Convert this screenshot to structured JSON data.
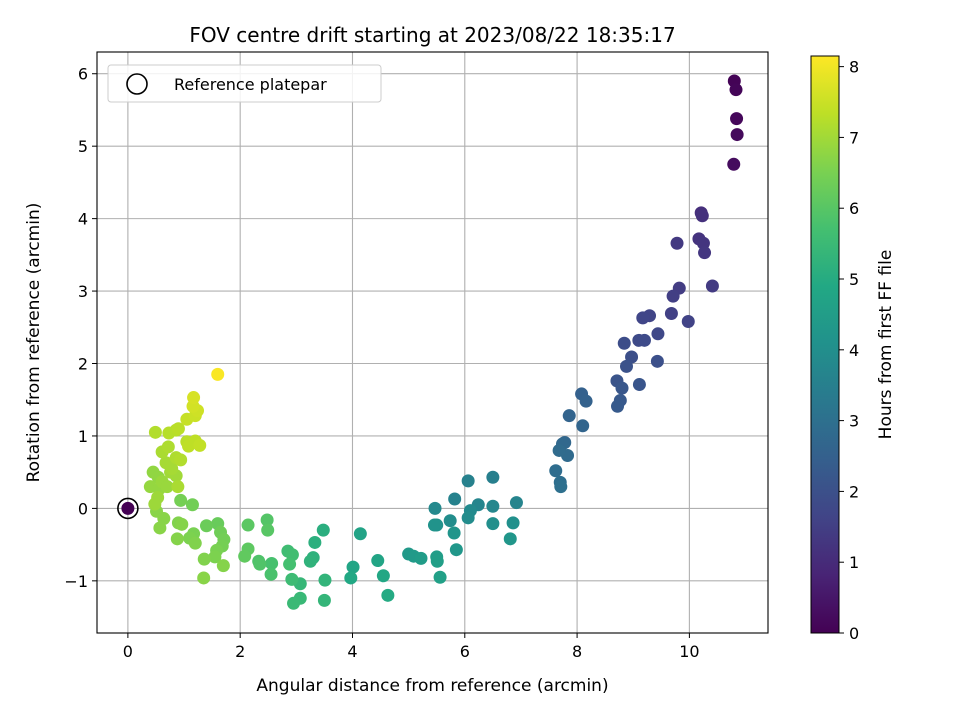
{
  "chart_data": {
    "type": "scatter",
    "title": "FOV centre drift starting at 2023/08/22 18:35:17",
    "xlabel": "Angular distance from reference (arcmin)",
    "ylabel": "Rotation from reference (arcmin)",
    "xlim": [
      -0.55,
      11.4
    ],
    "ylim": [
      -1.72,
      6.3
    ],
    "xticks": [
      0,
      2,
      4,
      6,
      8,
      10
    ],
    "yticks": [
      -1,
      0,
      1,
      2,
      3,
      4,
      5,
      6
    ],
    "xtick_labels": [
      "0",
      "2",
      "4",
      "6",
      "8",
      "10"
    ],
    "ytick_labels": [
      "−1",
      "0",
      "1",
      "2",
      "3",
      "4",
      "5",
      "6"
    ],
    "grid": true,
    "colormap": "viridis",
    "colorbar": {
      "label": "Hours from first FF file",
      "range": [
        0,
        8.15
      ],
      "ticks": [
        0,
        1,
        2,
        3,
        4,
        5,
        6,
        7,
        8
      ],
      "tick_labels": [
        "0",
        "1",
        "2",
        "3",
        "4",
        "5",
        "6",
        "7",
        "8"
      ]
    },
    "legend": {
      "placement": "top-left",
      "entries": [
        "Reference platepar"
      ]
    },
    "reference_point": {
      "x": 0,
      "y": 0
    },
    "points": [
      {
        "x": 10.8,
        "y": 5.9,
        "c": 0.05
      },
      {
        "x": 10.83,
        "y": 5.78,
        "c": 0.1
      },
      {
        "x": 10.84,
        "y": 5.38,
        "c": 0.15
      },
      {
        "x": 10.85,
        "y": 5.16,
        "c": 0.2
      },
      {
        "x": 10.79,
        "y": 4.75,
        "c": 0.25
      },
      {
        "x": 10.21,
        "y": 4.08,
        "c": 1.1
      },
      {
        "x": 10.23,
        "y": 4.04,
        "c": 1.15
      },
      {
        "x": 10.17,
        "y": 3.72,
        "c": 1.2
      },
      {
        "x": 10.25,
        "y": 3.66,
        "c": 1.25
      },
      {
        "x": 10.27,
        "y": 3.53,
        "c": 1.3
      },
      {
        "x": 9.78,
        "y": 3.66,
        "c": 1.35
      },
      {
        "x": 10.41,
        "y": 3.07,
        "c": 1.4
      },
      {
        "x": 9.82,
        "y": 3.04,
        "c": 1.45
      },
      {
        "x": 9.71,
        "y": 2.93,
        "c": 1.5
      },
      {
        "x": 9.68,
        "y": 2.69,
        "c": 1.55
      },
      {
        "x": 9.98,
        "y": 2.58,
        "c": 1.6
      },
      {
        "x": 9.29,
        "y": 2.66,
        "c": 1.65
      },
      {
        "x": 9.17,
        "y": 2.63,
        "c": 1.7
      },
      {
        "x": 9.44,
        "y": 2.41,
        "c": 1.75
      },
      {
        "x": 9.1,
        "y": 2.32,
        "c": 1.8
      },
      {
        "x": 9.2,
        "y": 2.32,
        "c": 1.85
      },
      {
        "x": 8.84,
        "y": 2.28,
        "c": 1.9
      },
      {
        "x": 8.97,
        "y": 2.09,
        "c": 1.95
      },
      {
        "x": 9.43,
        "y": 2.03,
        "c": 2.0
      },
      {
        "x": 8.88,
        "y": 1.96,
        "c": 2.05
      },
      {
        "x": 8.71,
        "y": 1.76,
        "c": 2.1
      },
      {
        "x": 9.11,
        "y": 1.71,
        "c": 2.15
      },
      {
        "x": 8.8,
        "y": 1.66,
        "c": 2.2
      },
      {
        "x": 8.77,
        "y": 1.49,
        "c": 2.25
      },
      {
        "x": 8.72,
        "y": 1.41,
        "c": 2.3
      },
      {
        "x": 8.08,
        "y": 1.58,
        "c": 2.5
      },
      {
        "x": 8.16,
        "y": 1.48,
        "c": 2.55
      },
      {
        "x": 7.86,
        "y": 1.28,
        "c": 2.6
      },
      {
        "x": 8.1,
        "y": 1.14,
        "c": 2.65
      },
      {
        "x": 7.78,
        "y": 0.91,
        "c": 2.7
      },
      {
        "x": 7.74,
        "y": 0.89,
        "c": 2.75
      },
      {
        "x": 7.83,
        "y": 0.73,
        "c": 2.8
      },
      {
        "x": 7.68,
        "y": 0.8,
        "c": 2.85
      },
      {
        "x": 7.62,
        "y": 0.52,
        "c": 2.9
      },
      {
        "x": 7.7,
        "y": 0.36,
        "c": 2.95
      },
      {
        "x": 7.71,
        "y": 0.3,
        "c": 3.0
      },
      {
        "x": 6.5,
        "y": 0.43,
        "c": 3.5
      },
      {
        "x": 6.06,
        "y": 0.38,
        "c": 3.55
      },
      {
        "x": 5.82,
        "y": 0.13,
        "c": 3.6
      },
      {
        "x": 6.92,
        "y": 0.08,
        "c": 3.65
      },
      {
        "x": 6.24,
        "y": 0.05,
        "c": 3.7
      },
      {
        "x": 6.5,
        "y": 0.03,
        "c": 3.75
      },
      {
        "x": 5.47,
        "y": 0.0,
        "c": 3.8
      },
      {
        "x": 6.1,
        "y": -0.03,
        "c": 3.85
      },
      {
        "x": 6.06,
        "y": -0.13,
        "c": 3.9
      },
      {
        "x": 5.74,
        "y": -0.17,
        "c": 3.95
      },
      {
        "x": 6.5,
        "y": -0.21,
        "c": 4.0
      },
      {
        "x": 6.86,
        "y": -0.2,
        "c": 4.05
      },
      {
        "x": 5.5,
        "y": -0.23,
        "c": 4.1
      },
      {
        "x": 5.46,
        "y": -0.23,
        "c": 4.15
      },
      {
        "x": 5.81,
        "y": -0.34,
        "c": 4.2
      },
      {
        "x": 6.81,
        "y": -0.42,
        "c": 4.25
      },
      {
        "x": 5.85,
        "y": -0.57,
        "c": 4.3
      },
      {
        "x": 5.0,
        "y": -0.63,
        "c": 4.35
      },
      {
        "x": 5.09,
        "y": -0.66,
        "c": 4.4
      },
      {
        "x": 5.22,
        "y": -0.69,
        "c": 4.45
      },
      {
        "x": 5.5,
        "y": -0.67,
        "c": 4.5
      },
      {
        "x": 5.51,
        "y": -0.73,
        "c": 4.55
      },
      {
        "x": 5.56,
        "y": -0.95,
        "c": 4.6
      },
      {
        "x": 4.14,
        "y": -0.35,
        "c": 4.7
      },
      {
        "x": 4.45,
        "y": -0.72,
        "c": 4.75
      },
      {
        "x": 4.01,
        "y": -0.81,
        "c": 4.8
      },
      {
        "x": 4.55,
        "y": -0.93,
        "c": 4.85
      },
      {
        "x": 3.97,
        "y": -0.96,
        "c": 4.9
      },
      {
        "x": 4.63,
        "y": -1.2,
        "c": 4.95
      },
      {
        "x": 3.48,
        "y": -0.3,
        "c": 5.1
      },
      {
        "x": 3.33,
        "y": -0.47,
        "c": 5.15
      },
      {
        "x": 3.3,
        "y": -0.68,
        "c": 5.2
      },
      {
        "x": 3.25,
        "y": -0.73,
        "c": 5.25
      },
      {
        "x": 3.51,
        "y": -0.99,
        "c": 5.3
      },
      {
        "x": 3.5,
        "y": -1.27,
        "c": 5.35
      },
      {
        "x": 3.07,
        "y": -1.04,
        "c": 5.4
      },
      {
        "x": 3.07,
        "y": -1.24,
        "c": 5.45
      },
      {
        "x": 2.95,
        "y": -1.31,
        "c": 5.5
      },
      {
        "x": 2.92,
        "y": -0.98,
        "c": 5.55
      },
      {
        "x": 2.85,
        "y": -0.59,
        "c": 5.6
      },
      {
        "x": 2.93,
        "y": -0.64,
        "c": 5.65
      },
      {
        "x": 2.88,
        "y": -0.77,
        "c": 5.7
      },
      {
        "x": 2.56,
        "y": -0.76,
        "c": 5.75
      },
      {
        "x": 2.55,
        "y": -0.91,
        "c": 5.8
      },
      {
        "x": 2.33,
        "y": -0.73,
        "c": 5.85
      },
      {
        "x": 2.35,
        "y": -0.77,
        "c": 5.9
      },
      {
        "x": 2.48,
        "y": -0.16,
        "c": 5.95
      },
      {
        "x": 2.49,
        "y": -0.3,
        "c": 6.0
      },
      {
        "x": 2.14,
        "y": -0.23,
        "c": 6.05
      },
      {
        "x": 2.14,
        "y": -0.56,
        "c": 6.1
      },
      {
        "x": 2.08,
        "y": -0.66,
        "c": 6.15
      },
      {
        "x": 1.6,
        "y": -0.21,
        "c": 6.25
      },
      {
        "x": 1.4,
        "y": -0.24,
        "c": 6.3
      },
      {
        "x": 1.65,
        "y": -0.33,
        "c": 6.35
      },
      {
        "x": 1.71,
        "y": -0.43,
        "c": 6.4
      },
      {
        "x": 1.68,
        "y": -0.52,
        "c": 6.45
      },
      {
        "x": 1.58,
        "y": -0.58,
        "c": 6.5
      },
      {
        "x": 1.55,
        "y": -0.67,
        "c": 6.55
      },
      {
        "x": 1.36,
        "y": -0.7,
        "c": 6.6
      },
      {
        "x": 1.7,
        "y": -0.79,
        "c": 6.65
      },
      {
        "x": 1.35,
        "y": -0.96,
        "c": 6.7
      },
      {
        "x": 1.15,
        "y": 0.05,
        "c": 6.4
      },
      {
        "x": 0.94,
        "y": 0.11,
        "c": 6.45
      },
      {
        "x": 1.17,
        "y": -0.35,
        "c": 6.5
      },
      {
        "x": 1.1,
        "y": -0.41,
        "c": 6.55
      },
      {
        "x": 1.2,
        "y": -0.48,
        "c": 6.6
      },
      {
        "x": 0.9,
        "y": -0.2,
        "c": 6.6
      },
      {
        "x": 0.96,
        "y": -0.22,
        "c": 6.65
      },
      {
        "x": 0.88,
        "y": -0.42,
        "c": 6.65
      },
      {
        "x": 0.57,
        "y": -0.27,
        "c": 6.7
      },
      {
        "x": 0.51,
        "y": -0.04,
        "c": 6.7
      },
      {
        "x": 0.64,
        "y": -0.14,
        "c": 6.7
      },
      {
        "x": 0.45,
        "y": 0.5,
        "c": 6.8
      },
      {
        "x": 0.54,
        "y": 0.43,
        "c": 6.8
      },
      {
        "x": 0.4,
        "y": 0.3,
        "c": 6.85
      },
      {
        "x": 0.56,
        "y": 0.27,
        "c": 6.85
      },
      {
        "x": 0.61,
        "y": 0.37,
        "c": 6.9
      },
      {
        "x": 0.7,
        "y": 0.3,
        "c": 6.9
      },
      {
        "x": 0.53,
        "y": 0.15,
        "c": 6.95
      },
      {
        "x": 0.48,
        "y": 0.06,
        "c": 6.95
      },
      {
        "x": 0.76,
        "y": 0.5,
        "c": 7.0
      },
      {
        "x": 0.86,
        "y": 0.45,
        "c": 7.0
      },
      {
        "x": 0.68,
        "y": 0.63,
        "c": 7.05
      },
      {
        "x": 0.78,
        "y": 0.55,
        "c": 7.05
      },
      {
        "x": 0.89,
        "y": 0.3,
        "c": 7.1
      },
      {
        "x": 0.61,
        "y": 0.78,
        "c": 7.1
      },
      {
        "x": 0.72,
        "y": 0.85,
        "c": 7.15
      },
      {
        "x": 0.86,
        "y": 0.7,
        "c": 7.15
      },
      {
        "x": 0.94,
        "y": 0.67,
        "c": 7.2
      },
      {
        "x": 0.49,
        "y": 1.05,
        "c": 7.2
      },
      {
        "x": 0.73,
        "y": 1.04,
        "c": 7.25
      },
      {
        "x": 0.86,
        "y": 1.08,
        "c": 7.25
      },
      {
        "x": 0.9,
        "y": 1.1,
        "c": 7.3
      },
      {
        "x": 1.05,
        "y": 0.92,
        "c": 7.3
      },
      {
        "x": 1.08,
        "y": 0.86,
        "c": 7.35
      },
      {
        "x": 1.2,
        "y": 0.93,
        "c": 7.35
      },
      {
        "x": 1.28,
        "y": 0.87,
        "c": 7.4
      },
      {
        "x": 1.05,
        "y": 1.23,
        "c": 7.45
      },
      {
        "x": 1.2,
        "y": 1.28,
        "c": 7.5
      },
      {
        "x": 1.24,
        "y": 1.35,
        "c": 7.55
      },
      {
        "x": 1.16,
        "y": 1.41,
        "c": 7.6
      },
      {
        "x": 1.17,
        "y": 1.53,
        "c": 7.65
      },
      {
        "x": 1.6,
        "y": 1.85,
        "c": 8.1
      }
    ]
  }
}
